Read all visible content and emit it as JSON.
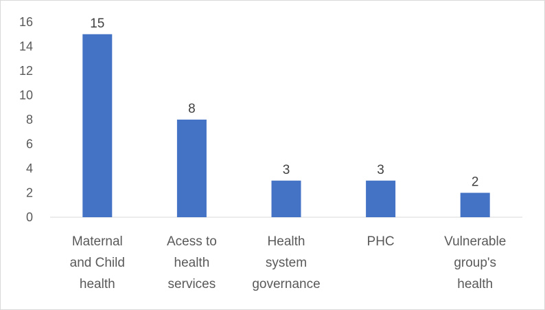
{
  "chart_data": {
    "type": "bar",
    "categories": [
      [
        "Maternal",
        "and Child",
        "health"
      ],
      [
        "Acess to",
        "health",
        "services"
      ],
      [
        "Health",
        "system",
        "governance"
      ],
      [
        "PHC"
      ],
      [
        "Vulnerable",
        "group's",
        "health"
      ]
    ],
    "values": [
      15,
      8,
      3,
      3,
      2
    ],
    "data_labels": [
      "15",
      "8",
      "3",
      "3",
      "2"
    ],
    "ylim": [
      0,
      16
    ],
    "yticks": [
      0,
      2,
      4,
      6,
      8,
      10,
      12,
      14,
      16
    ],
    "title": "",
    "xlabel": "",
    "ylabel": "",
    "grid": false,
    "legend": "none",
    "bar_color": "#4472c4",
    "axis_color": "#d9d9d9"
  }
}
